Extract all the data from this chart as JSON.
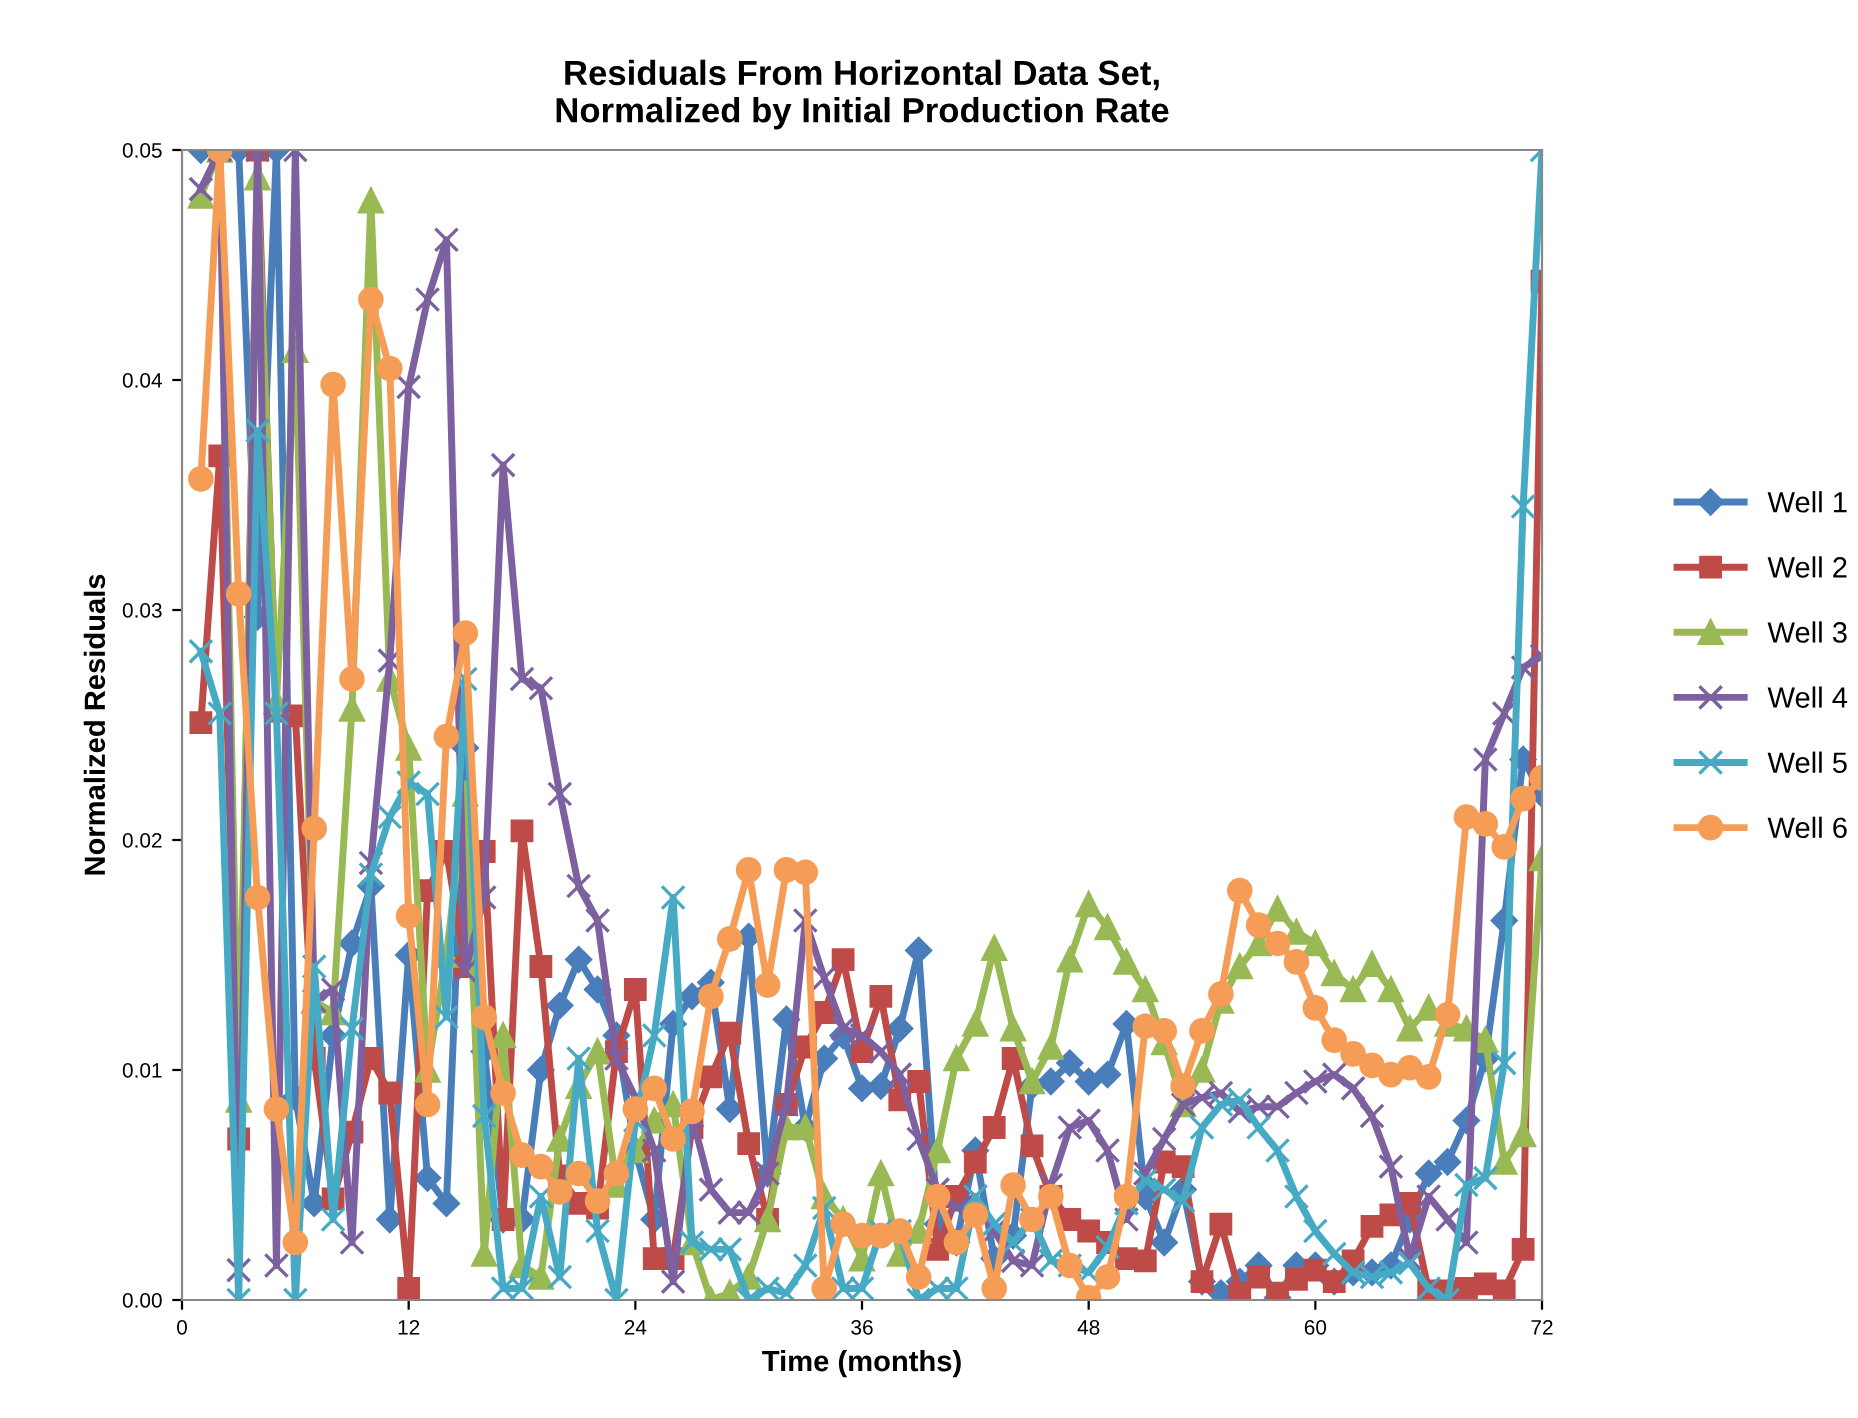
{
  "chart_data": {
    "type": "line",
    "title": "Residuals From Horizontal Data Set,\nNormalized by Initial Production Rate",
    "xlabel": "Time (months)",
    "ylabel": "Normalized Residuals",
    "x": [
      1,
      2,
      3,
      4,
      5,
      6,
      7,
      8,
      9,
      10,
      11,
      12,
      13,
      14,
      15,
      16,
      17,
      18,
      19,
      20,
      21,
      22,
      23,
      24,
      25,
      26,
      27,
      28,
      29,
      30,
      31,
      32,
      33,
      34,
      35,
      36,
      37,
      38,
      39,
      40,
      41,
      42,
      43,
      44,
      45,
      46,
      47,
      48,
      49,
      50,
      51,
      52,
      53,
      54,
      55,
      56,
      57,
      58,
      59,
      60,
      61,
      62,
      63,
      64,
      65,
      66,
      67,
      68,
      69,
      70,
      71,
      72
    ],
    "xlim": [
      0,
      72
    ],
    "xticks": [
      0,
      12,
      24,
      36,
      48,
      60,
      72
    ],
    "ylim": [
      0,
      0.05
    ],
    "yticks": [
      {
        "value": 0,
        "label": "0.00"
      },
      {
        "value": 0.01,
        "label": "0.01"
      },
      {
        "value": 0.02,
        "label": "0.02"
      },
      {
        "value": 0.03,
        "label": "0.03"
      },
      {
        "value": 0.04,
        "label": "0.04"
      },
      {
        "value": 0.05,
        "label": "0.05"
      }
    ],
    "grid": false,
    "legend": "right",
    "line_style": "solid",
    "series": [
      {
        "name": "Well 1",
        "color": "#4a7ebb",
        "marker": "diamond",
        "values": [
          0.05,
          0.05,
          0.05,
          0.0297,
          0.05,
          0.0088,
          0.0042,
          0.0115,
          0.0155,
          0.018,
          0.0035,
          0.015,
          0.0053,
          0.0042,
          0.024,
          0.0108,
          0.0035,
          0.0035,
          0.01,
          0.0128,
          0.0148,
          0.0135,
          0.0115,
          0.0065,
          0.0035,
          0.012,
          0.0132,
          0.0138,
          0.0083,
          0.0158,
          0.0055,
          0.0122,
          0.0075,
          0.0105,
          0.0115,
          0.0092,
          0.0093,
          0.0118,
          0.0152,
          0.0033,
          0.0025,
          0.0065,
          0.0018,
          0.0028,
          0.0093,
          0.0095,
          0.0103,
          0.0095,
          0.0098,
          0.012,
          0.0045,
          0.0025,
          0.0048,
          0.0008,
          0.0003,
          0.0008,
          0.0015,
          0.0001,
          0.0015,
          0.0015,
          0.0008,
          0.0012,
          0.0012,
          0.0015,
          0.0035,
          0.0055,
          0.006,
          0.0078,
          0.0105,
          0.0165,
          0.0235,
          0.022
        ]
      },
      {
        "name": "Well 2",
        "color": "#be4b48",
        "marker": "square",
        "values": [
          0.0251,
          0.0367,
          0.007,
          0.05,
          0.0256,
          0.0254,
          0.0105,
          0.0044,
          0.0073,
          0.0105,
          0.009,
          0.0005,
          0.0178,
          0.0195,
          0.0145,
          0.0195,
          0.0035,
          0.0204,
          0.0145,
          0.0054,
          0.0042,
          0.004,
          0.0108,
          0.0135,
          0.0018,
          0.0018,
          0.0075,
          0.0097,
          0.0116,
          0.0068,
          0.0035,
          0.0085,
          0.011,
          0.0125,
          0.0148,
          0.0108,
          0.0132,
          0.0087,
          0.0095,
          0.0022,
          0.0045,
          0.006,
          0.0075,
          0.0105,
          0.0067,
          0.0045,
          0.0035,
          0.003,
          0.0025,
          0.0018,
          0.0017,
          0.006,
          0.0058,
          0.0008,
          0.0033,
          0.0003,
          0.001,
          0.0003,
          0.0009,
          0.0013,
          0.0008,
          0.0017,
          0.0032,
          0.0037,
          0.0042,
          0.0004,
          0.0004,
          0.0005,
          0.0007,
          0.0004,
          0.0022,
          0.0443
        ]
      },
      {
        "name": "Well 3",
        "color": "#98b954",
        "marker": "triangle",
        "values": [
          0.048,
          0.05,
          0.0087,
          0.0488,
          0.026,
          0.0413,
          0.013,
          0.0125,
          0.0257,
          0.0478,
          0.027,
          0.024,
          0.01,
          0.015,
          0.022,
          0.002,
          0.0115,
          0.0015,
          0.001,
          0.007,
          0.0093,
          0.0108,
          0.005,
          0.0065,
          0.0078,
          0.0085,
          0.0025,
          0.0,
          0.0003,
          0.001,
          0.0035,
          0.0075,
          0.0075,
          0.0045,
          0.0035,
          0.0018,
          0.0055,
          0.002,
          0.003,
          0.0065,
          0.0105,
          0.012,
          0.0153,
          0.0118,
          0.0095,
          0.011,
          0.0148,
          0.0172,
          0.0162,
          0.0147,
          0.0135,
          0.0112,
          0.0085,
          0.01,
          0.013,
          0.0145,
          0.0155,
          0.017,
          0.016,
          0.0155,
          0.0142,
          0.0135,
          0.0146,
          0.0135,
          0.0118,
          0.0127,
          0.012,
          0.0118,
          0.0113,
          0.006,
          0.0072,
          0.0192
        ]
      },
      {
        "name": "Well 4",
        "color": "#7d60a0",
        "marker": "cross",
        "values": [
          0.0483,
          0.05,
          0.0013,
          0.05,
          0.0015,
          0.05,
          0.013,
          0.0135,
          0.0025,
          0.019,
          0.0278,
          0.0397,
          0.0435,
          0.0461,
          0.0143,
          0.0175,
          0.0363,
          0.027,
          0.0266,
          0.022,
          0.018,
          0.0165,
          0.0105,
          0.0088,
          0.0065,
          0.0008,
          0.008,
          0.0048,
          0.0038,
          0.0038,
          0.0055,
          0.0085,
          0.0165,
          0.014,
          0.0118,
          0.0115,
          0.0108,
          0.0098,
          0.007,
          0.0048,
          0.004,
          0.0045,
          0.003,
          0.0017,
          0.0015,
          0.005,
          0.0075,
          0.0078,
          0.0065,
          0.0035,
          0.0055,
          0.007,
          0.0085,
          0.0088,
          0.009,
          0.0082,
          0.0084,
          0.0084,
          0.009,
          0.0095,
          0.0098,
          0.0092,
          0.008,
          0.0058,
          0.0018,
          0.0045,
          0.0035,
          0.0025,
          0.0235,
          0.0255,
          0.0275,
          0.028
        ]
      },
      {
        "name": "Well 5",
        "color": "#46aac5",
        "marker": "cross",
        "values": [
          0.0282,
          0.0255,
          0.0,
          0.0378,
          0.0255,
          0.0,
          0.0145,
          0.0035,
          0.0118,
          0.0185,
          0.021,
          0.0225,
          0.022,
          0.0123,
          0.027,
          0.008,
          0.0005,
          0.0005,
          0.0045,
          0.001,
          0.0105,
          0.003,
          0.0,
          0.0078,
          0.0115,
          0.0175,
          0.0025,
          0.0022,
          0.0022,
          0.0,
          0.0005,
          0.0003,
          0.0015,
          0.004,
          0.0005,
          0.0005,
          0.003,
          0.003,
          0.0,
          0.0005,
          0.0005,
          0.0045,
          0.0033,
          0.0025,
          0.0035,
          0.0017,
          0.0015,
          0.0012,
          0.0023,
          0.0042,
          0.0052,
          0.0048,
          0.0043,
          0.0075,
          0.0085,
          0.0087,
          0.0075,
          0.0065,
          0.0045,
          0.003,
          0.002,
          0.0012,
          0.001,
          0.0012,
          0.0016,
          0.0005,
          0.0,
          0.005,
          0.0053,
          0.0103,
          0.0345,
          0.05
        ]
      },
      {
        "name": "Well 6",
        "color": "#f59d56",
        "marker": "circle",
        "values": [
          0.0357,
          0.05,
          0.0307,
          0.0175,
          0.0083,
          0.0025,
          0.0205,
          0.0398,
          0.027,
          0.0435,
          0.0405,
          0.0167,
          0.0085,
          0.0245,
          0.029,
          0.0123,
          0.009,
          0.0063,
          0.0058,
          0.0047,
          0.0055,
          0.0043,
          0.0055,
          0.0083,
          0.0092,
          0.007,
          0.0082,
          0.0132,
          0.0157,
          0.0187,
          0.0137,
          0.0187,
          0.0186,
          0.0005,
          0.0033,
          0.0028,
          0.0028,
          0.003,
          0.001,
          0.0045,
          0.0025,
          0.0037,
          0.0005,
          0.005,
          0.0035,
          0.0045,
          0.0015,
          0.0001,
          0.001,
          0.0045,
          0.0119,
          0.0117,
          0.0093,
          0.0117,
          0.0133,
          0.0178,
          0.0163,
          0.0155,
          0.0147,
          0.0127,
          0.0113,
          0.0107,
          0.0102,
          0.0098,
          0.0101,
          0.0097,
          0.0124,
          0.021,
          0.0207,
          0.0197,
          0.0218,
          0.0227
        ]
      }
    ]
  }
}
